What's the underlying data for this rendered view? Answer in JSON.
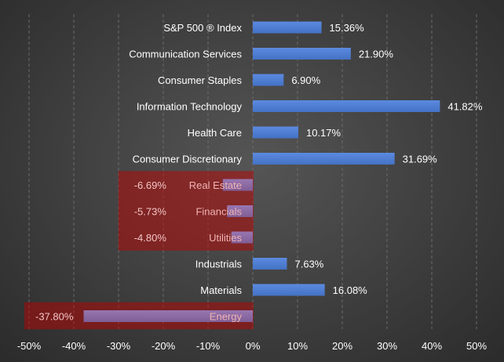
{
  "chart_data": {
    "type": "bar",
    "orientation": "horizontal",
    "title": "",
    "xlabel": "",
    "ylabel": "",
    "categories": [
      "S&P 500 ® Index",
      "Communication Services",
      "Consumer Staples",
      "Information Technology",
      "Health Care",
      "Consumer Discretionary",
      "Real Estate",
      "Financials",
      "Utilities",
      "Industrials",
      "Materials",
      "Energy"
    ],
    "values": [
      15.36,
      21.9,
      6.9,
      41.82,
      10.17,
      31.69,
      -6.69,
      -5.73,
      -4.8,
      7.63,
      16.08,
      -37.8
    ],
    "value_labels": [
      "15.36%",
      "21.90%",
      "6.90%",
      "41.82%",
      "10.17%",
      "31.69%",
      "-6.69%",
      "-5.73%",
      "-4.80%",
      "7.63%",
      "16.08%",
      "-37.80%"
    ],
    "xlim": [
      -50,
      50
    ],
    "xticks": [
      -50,
      -40,
      -30,
      -20,
      -10,
      0,
      10,
      20,
      30,
      40,
      50
    ],
    "xtick_labels": [
      "-50%",
      "-40%",
      "-30%",
      "-20%",
      "-10%",
      "0%",
      "10%",
      "20%",
      "30%",
      "40%",
      "50%"
    ],
    "grid": true,
    "colors": {
      "positive_bar": "#4472c4",
      "negative_bar": "#8064a2",
      "highlight": "#c00000"
    }
  }
}
